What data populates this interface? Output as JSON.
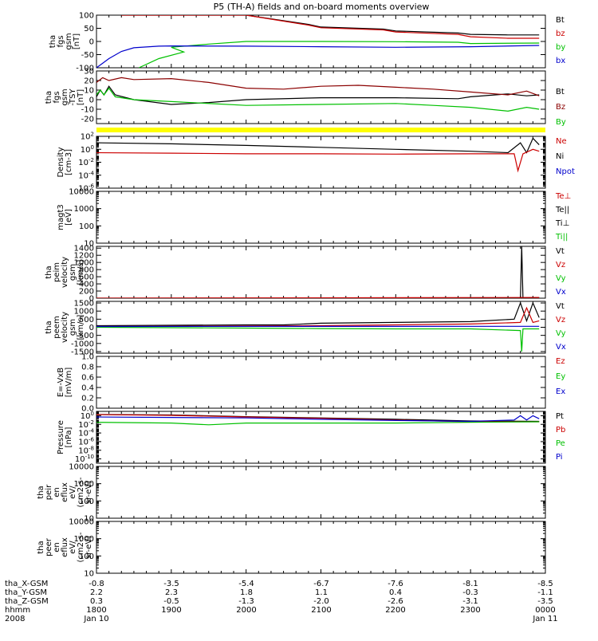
{
  "title": "P5 (TH-A) fields and on-board moments overview",
  "colors": {
    "black": "#000000",
    "red": "#cc0000",
    "dred": "#8b0000",
    "green": "#00e000",
    "blue": "#0000cc",
    "yellow": "#ffff00"
  },
  "chart_data": {
    "type": "line",
    "x_ticks": [
      "1800",
      "1900",
      "2000",
      "2100",
      "2200",
      "2300",
      "0000"
    ],
    "panels": [
      {
        "ylabel": [
          "tha",
          "fgs",
          "gsm",
          "[nT]"
        ],
        "yscale": "linear",
        "ylim": [
          -100,
          100
        ],
        "yticks": [
          "100",
          "50",
          "0",
          "-50",
          "-100"
        ],
        "legend": [
          {
            "label": "Bt",
            "color": "#000000"
          },
          {
            "label": "bz",
            "color": "#cc0000"
          },
          {
            "label": "by",
            "color": "#00c000"
          },
          {
            "label": "bx",
            "color": "#0000cc"
          }
        ],
        "series": [
          {
            "name": "Bt",
            "color": "#000000",
            "x": [
              1820,
              1900,
              1950,
              2000,
              2050,
              2100,
              2150,
              2200,
              2250,
              2300,
              2330,
              2355
            ],
            "y": [
              100,
              100,
              100,
              100,
              65,
              55,
              47,
              40,
              32,
              27,
              25,
              25
            ]
          },
          {
            "name": "bz",
            "color": "#cc0000",
            "x": [
              1820,
              1900,
              1950,
              2000,
              2050,
              2100,
              2150,
              2200,
              2250,
              2300,
              2330,
              2355
            ],
            "y": [
              100,
              100,
              100,
              100,
              62,
              52,
              44,
              36,
              27,
              18,
              12,
              12
            ]
          },
          {
            "name": "by",
            "color": "#00c000",
            "x": [
              1834,
              1850,
              1870,
              1900,
              1930,
              2000,
              2100,
              2200,
              2250,
              2300,
              2355
            ],
            "y": [
              -100,
              -65,
              -40,
              -22,
              -10,
              0,
              0,
              -1,
              -3,
              -8,
              -6
            ]
          },
          {
            "name": "bx",
            "color": "#0000cc",
            "x": [
              1800,
              1810,
              1820,
              1830,
              1850,
              1900,
              2000,
              2100,
              2200,
              2300,
              2355
            ],
            "y": [
              -100,
              -65,
              -38,
              -24,
              -18,
              -17,
              -18,
              -20,
              -22,
              -20,
              -15
            ]
          }
        ]
      },
      {
        "ylabel": [
          "tha",
          "fgs",
          "gsm",
          "-TSY",
          "[nT]"
        ],
        "yscale": "linear",
        "ylim": [
          -25,
          30
        ],
        "yticks": [
          "30",
          "20",
          "10",
          "0",
          "-10",
          "-20"
        ],
        "legend": [
          {
            "label": "Bt",
            "color": "#000000"
          },
          {
            "label": "Bz",
            "color": "#8b0000"
          },
          {
            "label": "By",
            "color": "#00c000"
          }
        ],
        "series": [
          {
            "name": "Bt",
            "color": "#000000",
            "x": [
              1800,
              1803,
              1806,
              1810,
              1815,
              1830,
              1900,
              1930,
              2000,
              2100,
              2200,
              2250,
              2300,
              2330,
              2345,
              2355
            ],
            "y": [
              3,
              10,
              5,
              14,
              5,
              0,
              -5,
              -3,
              0,
              2,
              2,
              1,
              3,
              6,
              4,
              5
            ]
          },
          {
            "name": "Bz",
            "color": "#8b0000",
            "x": [
              1800,
              1805,
              1810,
              1820,
              1830,
              1900,
              1930,
              2000,
              2030,
              2100,
              2130,
              2200,
              2230,
              2300,
              2330,
              2345,
              2355
            ],
            "y": [
              18,
              23,
              20,
              23,
              21,
              22,
              18,
              12,
              11,
              14,
              15,
              13,
              11,
              8,
              5,
              9,
              4
            ]
          },
          {
            "name": "By",
            "color": "#00c000",
            "x": [
              1800,
              1803,
              1806,
              1810,
              1815,
              1830,
              1900,
              2000,
              2100,
              2200,
              2230,
              2300,
              2330,
              2345,
              2355
            ],
            "y": [
              5,
              10,
              5,
              12,
              3,
              0,
              -2,
              -6,
              -5,
              -4,
              -6,
              -8,
              -12,
              -8,
              -10
            ]
          }
        ]
      },
      {
        "ylabel": [
          "Density",
          "[cm-3]"
        ],
        "yscale": "log",
        "ylim": [
          1e-06,
          100
        ],
        "yticks": [
          "10^2",
          "10^0",
          "10^-2",
          "10^-4",
          "10^-6"
        ],
        "legend": [
          {
            "label": "Ne",
            "color": "#cc0000"
          },
          {
            "label": "Ni",
            "color": "#000000"
          },
          {
            "label": "Npot",
            "color": "#0000cc"
          }
        ],
        "series": [
          {
            "name": "Ni",
            "color": "#000000",
            "x": [
              1800,
              1900,
              2000,
              2100,
              2200,
              2300,
              2330,
              2340,
              2345,
              2350,
              2355
            ],
            "y": [
              10,
              7,
              4,
              2,
              1,
              0.5,
              0.3,
              10,
              0.3,
              50,
              5
            ]
          },
          {
            "name": "Ne",
            "color": "#cc0000",
            "x": [
              1800,
              1900,
              2000,
              2100,
              2200,
              2300,
              2335,
              2338,
              2342,
              2350,
              2355
            ],
            "y": [
              0.3,
              0.25,
              0.2,
              0.2,
              0.18,
              0.2,
              0.2,
              0.0005,
              0.2,
              1,
              0.5
            ]
          }
        ]
      },
      {
        "ylabel": [
          "magt3",
          "[eV]"
        ],
        "yscale": "log",
        "ylim": [
          10,
          10000
        ],
        "yticks": [
          "10000",
          "1000",
          "100",
          "10"
        ],
        "legend": [
          {
            "label": "Te⊥",
            "color": "#cc0000"
          },
          {
            "label": "Te||",
            "color": "#000000"
          },
          {
            "label": "Ti⊥",
            "color": "#000000"
          },
          {
            "label": "Ti||",
            "color": "#00c000"
          }
        ],
        "series": []
      },
      {
        "ylabel": [
          "tha",
          "peim",
          "velocity",
          "gsm",
          "[km/s]"
        ],
        "yscale": "linear",
        "ylim": [
          0,
          1450
        ],
        "yticks": [
          "1400",
          "1200",
          "1000",
          "800",
          "600",
          "400",
          "200",
          "0"
        ],
        "legend": [
          {
            "label": "Vt",
            "color": "#000000"
          },
          {
            "label": "Vz",
            "color": "#cc0000"
          },
          {
            "label": "Vy",
            "color": "#00c000"
          },
          {
            "label": "Vx",
            "color": "#0000cc"
          }
        ],
        "series": [
          {
            "name": "Vt",
            "color": "#000000",
            "x": [
              1800,
              2300,
              2340,
              2341,
              2342,
              2343,
              2355
            ],
            "y": [
              0,
              0,
              0,
              1450,
              0,
              0,
              20
            ]
          },
          {
            "name": "Vz",
            "color": "#cc0000",
            "x": [
              1800,
              2355
            ],
            "y": [
              0,
              20
            ]
          }
        ]
      },
      {
        "ylabel": [
          "tha",
          "peem",
          "velocity",
          "gsm",
          "[km/s]"
        ],
        "yscale": "linear",
        "ylim": [
          -1600,
          1600
        ],
        "yticks": [
          "1500",
          "1000",
          "500",
          "0",
          "-500",
          "-1000",
          "-1500"
        ],
        "legend": [
          {
            "label": "Vt",
            "color": "#000000"
          },
          {
            "label": "Vz",
            "color": "#cc0000"
          },
          {
            "label": "Vy",
            "color": "#00c000"
          },
          {
            "label": "Vx",
            "color": "#0000cc"
          }
        ],
        "series": [
          {
            "name": "Vt",
            "color": "#000000",
            "x": [
              1800,
              2000,
              2030,
              2100,
              2200,
              2300,
              2335,
              2340,
              2345,
              2350,
              2355
            ],
            "y": [
              100,
              150,
              150,
              250,
              300,
              350,
              500,
              1500,
              400,
              1500,
              600
            ]
          },
          {
            "name": "Vz",
            "color": "#cc0000",
            "x": [
              1800,
              2000,
              2100,
              2200,
              2300,
              2340,
              2345,
              2350,
              2355
            ],
            "y": [
              50,
              80,
              100,
              150,
              200,
              300,
              1200,
              300,
              400
            ]
          },
          {
            "name": "Vy",
            "color": "#00c000",
            "x": [
              1800,
              2000,
              2100,
              2200,
              2300,
              2340,
              2341,
              2342,
              2355
            ],
            "y": [
              0,
              -50,
              -80,
              -100,
              -100,
              -200,
              -1500,
              -100,
              -100
            ]
          },
          {
            "name": "Vx",
            "color": "#0000cc",
            "x": [
              1800,
              2355
            ],
            "y": [
              50,
              60
            ]
          }
        ]
      },
      {
        "ylabel": [
          "E=-VxB",
          "[mV/m]"
        ],
        "yscale": "linear",
        "ylim": [
          0,
          1
        ],
        "yticks": [
          "1.0",
          "0.8",
          "0.6",
          "0.4",
          "0.2",
          "0.0"
        ],
        "legend": [
          {
            "label": "Ez",
            "color": "#cc0000"
          },
          {
            "label": "Ey",
            "color": "#00c000"
          },
          {
            "label": "Ex",
            "color": "#0000cc"
          }
        ],
        "series": []
      },
      {
        "ylabel": [
          "Pressure",
          "[nPa]"
        ],
        "yscale": "log",
        "ylim": [
          1e-11,
          10
        ],
        "yticks": [
          "10^0",
          "10^-2",
          "10^-4",
          "10^-6",
          "10^-8",
          "10^-10"
        ],
        "legend": [
          {
            "label": "Pt",
            "color": "#000000"
          },
          {
            "label": "Pb",
            "color": "#cc0000"
          },
          {
            "label": "Pe",
            "color": "#00c000"
          },
          {
            "label": "Pi",
            "color": "#0000cc"
          }
        ],
        "series": [
          {
            "name": "Pt",
            "color": "#000000",
            "x": [
              1800,
              1900,
              2000,
              2100,
              2200,
              2300,
              2355
            ],
            "y": [
              2,
              1.5,
              0.6,
              0.3,
              0.15,
              0.06,
              0.05
            ]
          },
          {
            "name": "Pb",
            "color": "#cc0000",
            "x": [
              1800,
              1900,
              2000,
              2100,
              2200,
              2300,
              2355
            ],
            "y": [
              1.8,
              1.2,
              0.5,
              0.25,
              0.1,
              0.04,
              0.04
            ]
          },
          {
            "name": "Pi",
            "color": "#0000cc",
            "x": [
              1800,
              1900,
              2000,
              2100,
              2200,
              2300,
              2335,
              2340,
              2345,
              2350,
              2355
            ],
            "y": [
              0.5,
              0.4,
              0.3,
              0.15,
              0.08,
              0.05,
              0.1,
              1,
              0.1,
              1,
              0.2
            ]
          },
          {
            "name": "Pe",
            "color": "#00c000",
            "x": [
              1800,
              1900,
              1930,
              2000,
              2100,
              2200,
              2300,
              2355
            ],
            "y": [
              0.03,
              0.02,
              0.008,
              0.02,
              0.02,
              0.02,
              0.03,
              0.04
            ]
          }
        ]
      },
      {
        "ylabel": [
          "tha",
          "peir",
          "en",
          "eflux",
          "eV/",
          "(cm2-s-",
          "sr-eV)"
        ],
        "yscale": "log",
        "ylim": [
          10,
          10000
        ],
        "yticks": [
          "10000",
          "1000",
          "100",
          "10"
        ],
        "legend": [],
        "series": []
      },
      {
        "ylabel": [
          "tha",
          "peer",
          "en",
          "eflux",
          "eV/",
          "(cm2-s-",
          "sr-eV)"
        ],
        "yscale": "log",
        "ylim": [
          10,
          10000
        ],
        "yticks": [
          "10000",
          "1000",
          "100",
          "10"
        ],
        "legend": [],
        "series": []
      }
    ],
    "ephemeris": [
      {
        "label": "tha_X-GSM",
        "values": [
          "-0.8",
          "-3.5",
          "-5.4",
          "-6.7",
          "-7.6",
          "-8.1",
          "-8.5"
        ]
      },
      {
        "label": "tha_Y-GSM",
        "values": [
          "2.2",
          "2.3",
          "1.8",
          "1.1",
          "0.4",
          "-0.3",
          "-1.1"
        ]
      },
      {
        "label": "tha_Z-GSM",
        "values": [
          "0.3",
          "-0.5",
          "-1.3",
          "-2.0",
          "-2.6",
          "-3.1",
          "-3.5"
        ]
      },
      {
        "label": "hhmm",
        "values": [
          "1800",
          "1900",
          "2000",
          "2100",
          "2200",
          "2300",
          "0000"
        ]
      },
      {
        "label": "2008",
        "values": [
          "Jan 10",
          "",
          "",
          "",
          "",
          "",
          "Jan 11"
        ]
      }
    ]
  }
}
